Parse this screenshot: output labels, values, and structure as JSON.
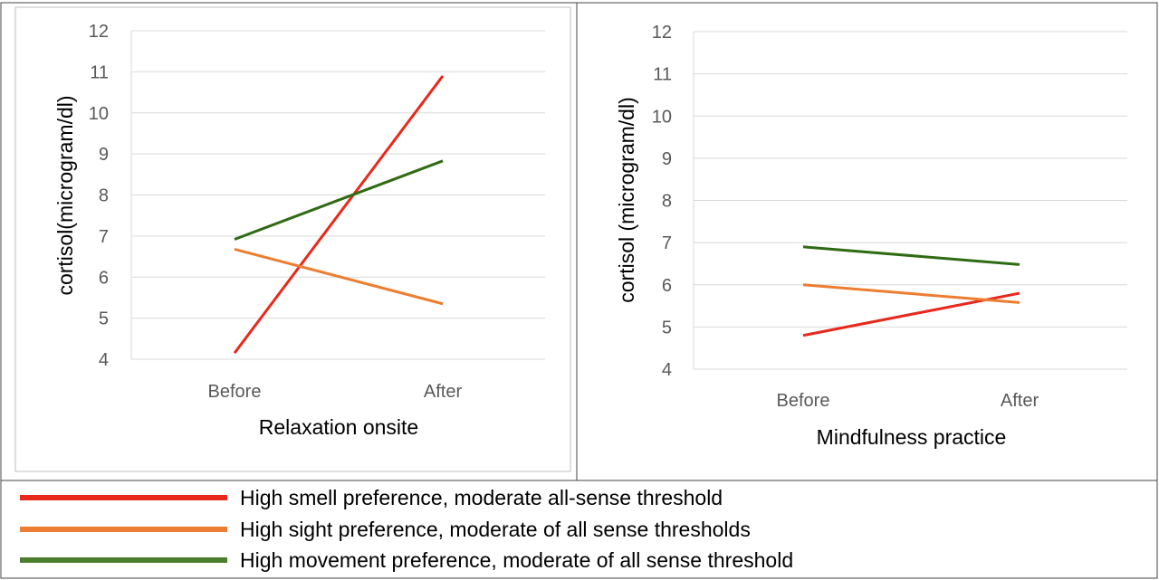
{
  "chart_data": [
    {
      "type": "line",
      "title": "",
      "xlabel": "Relaxation onsite",
      "ylabel": "cortisol(microgram/dl)",
      "categories": [
        "Before",
        "After"
      ],
      "ylim": [
        4,
        12
      ],
      "yticks": [
        "4",
        "5",
        "6",
        "7",
        "8",
        "9",
        "10",
        "11",
        "12"
      ],
      "grid": true,
      "series": [
        {
          "name": "High smell preference, moderate all-sense threshold",
          "color": "#e8281c",
          "values": [
            4.15,
            10.9
          ]
        },
        {
          "name": "High sight preference, moderate of all sense thresholds",
          "color": "#ed7d31",
          "values": [
            6.68,
            5.35
          ]
        },
        {
          "name": "High movement preference, moderate of all sense threshold",
          "color": "#2f6b12",
          "values": [
            6.92,
            8.83
          ]
        }
      ]
    },
    {
      "type": "line",
      "title": "",
      "xlabel": "Mindfulness practice",
      "ylabel": "cortisol (microgram/dl)",
      "categories": [
        "Before",
        "After"
      ],
      "ylim": [
        4,
        12
      ],
      "yticks": [
        "4",
        "5",
        "6",
        "7",
        "8",
        "9",
        "10",
        "11",
        "12"
      ],
      "grid": true,
      "series": [
        {
          "name": "High smell preference, moderate all-sense threshold",
          "color": "#e8281c",
          "values": [
            4.8,
            5.8
          ]
        },
        {
          "name": "High sight preference, moderate of all sense thresholds",
          "color": "#ed7d31",
          "values": [
            6.0,
            5.58
          ]
        },
        {
          "name": "High movement preference, moderate of all sense threshold",
          "color": "#2f6b12",
          "values": [
            6.9,
            6.48
          ]
        }
      ]
    }
  ],
  "legend": {
    "placement": "bottom",
    "items": [
      {
        "label": "High smell preference, moderate all-sense threshold",
        "color": "#e8281c"
      },
      {
        "label": "High sight preference, moderate of all sense thresholds",
        "color": "#ed7d31"
      },
      {
        "label": "High movement preference, moderate of all sense threshold",
        "color": "#4a7e2c"
      }
    ]
  }
}
